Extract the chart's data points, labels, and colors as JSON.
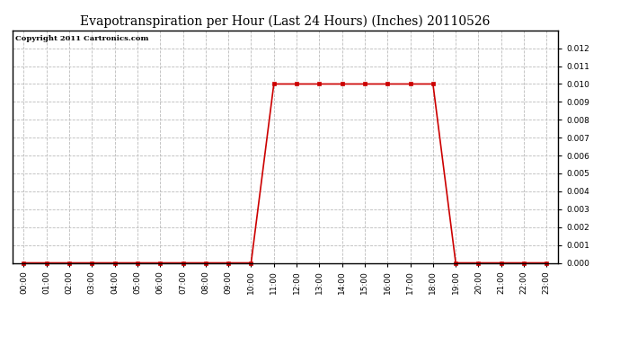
{
  "title": "Evapotranspiration per Hour (Last 24 Hours) (Inches) 20110526",
  "copyright": "Copyright 2011 Cartronics.com",
  "hours": [
    0,
    1,
    2,
    3,
    4,
    5,
    6,
    7,
    8,
    9,
    10,
    11,
    12,
    13,
    14,
    15,
    16,
    17,
    18,
    19,
    20,
    21,
    22,
    23
  ],
  "values": [
    0,
    0,
    0,
    0,
    0,
    0,
    0,
    0,
    0,
    0,
    0,
    0.01,
    0.01,
    0.01,
    0.01,
    0.01,
    0.01,
    0.01,
    0.01,
    0,
    0,
    0,
    0,
    0
  ],
  "line_color": "#cc0000",
  "marker": "s",
  "marker_size": 2.5,
  "marker_edge_width": 0.5,
  "line_width": 1.2,
  "ylim": [
    0,
    0.013
  ],
  "yticks": [
    0.0,
    0.001,
    0.002,
    0.003,
    0.004,
    0.005,
    0.006,
    0.007,
    0.008,
    0.009,
    0.01,
    0.011,
    0.012
  ],
  "background_color": "#ffffff",
  "grid_color": "#bbbbbb",
  "title_fontsize": 10,
  "copyright_fontsize": 6,
  "tick_fontsize": 6.5,
  "ytick_fontsize": 6.5
}
